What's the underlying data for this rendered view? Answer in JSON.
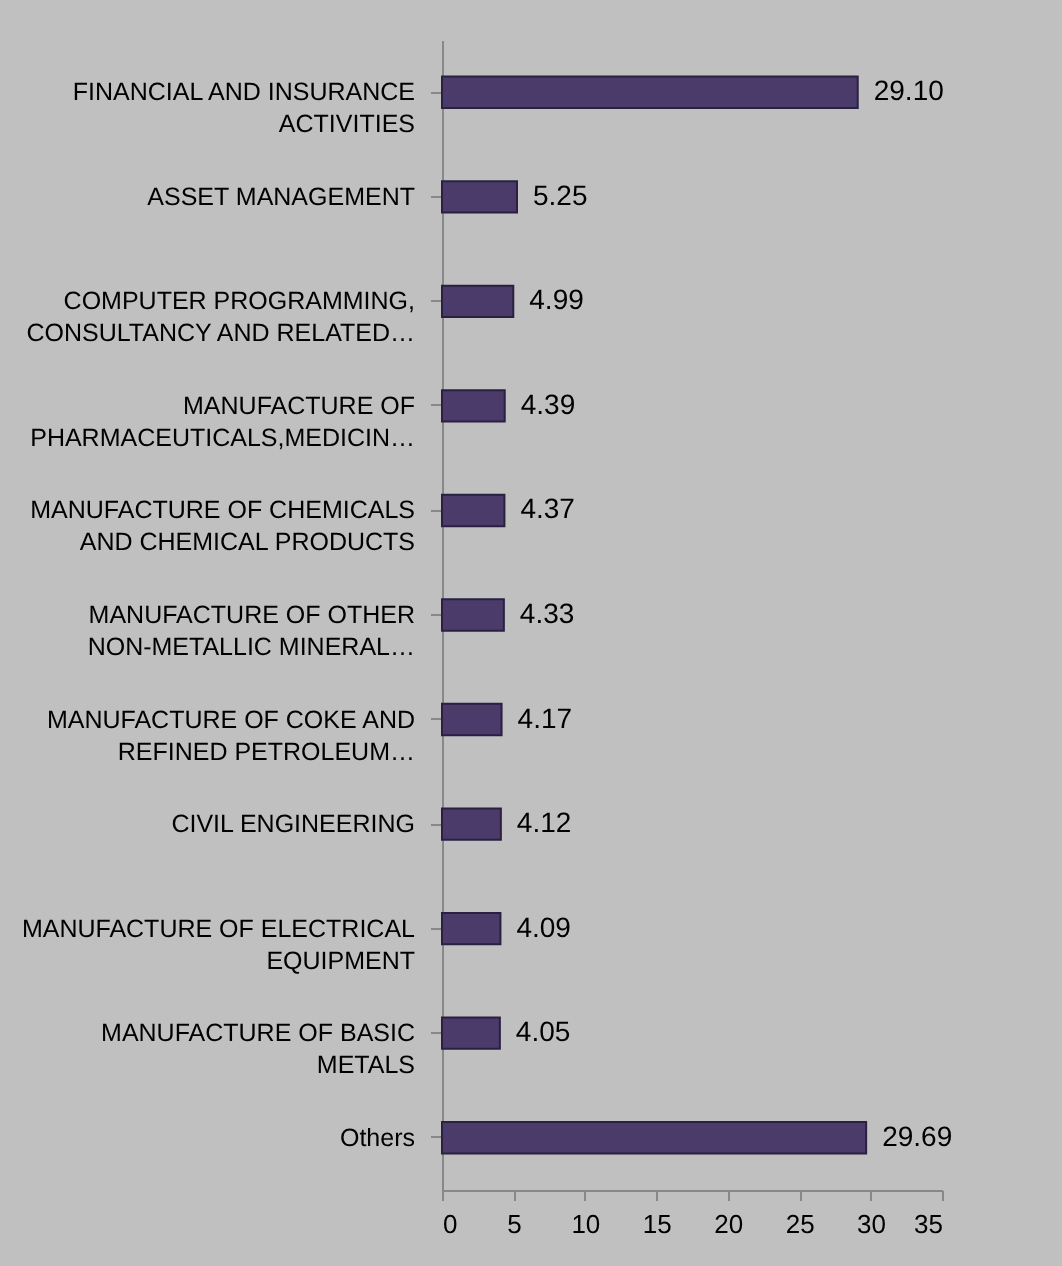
{
  "chart_data": {
    "type": "bar",
    "orientation": "horizontal",
    "categories": [
      "FINANCIAL AND INSURANCE ACTIVITIES",
      "ASSET MANAGEMENT",
      "COMPUTER PROGRAMMING, CONSULTANCY AND RELATED…",
      "MANUFACTURE OF PHARMACEUTICALS,MEDICIN…",
      "MANUFACTURE OF CHEMICALS AND CHEMICAL PRODUCTS",
      "MANUFACTURE OF OTHER NON-METALLIC MINERAL…",
      "MANUFACTURE OF COKE AND REFINED PETROLEUM…",
      "CIVIL ENGINEERING",
      "MANUFACTURE OF ELECTRICAL EQUIPMENT",
      "MANUFACTURE OF BASIC METALS",
      "Others"
    ],
    "values": [
      29.1,
      5.25,
      4.99,
      4.39,
      4.37,
      4.33,
      4.17,
      4.12,
      4.09,
      4.05,
      29.69
    ],
    "value_labels": [
      "29.10",
      "5.25",
      "4.99",
      "4.39",
      "4.37",
      "4.33",
      "4.17",
      "4.12",
      "4.09",
      "4.05",
      "29.69"
    ],
    "color": "#4b3b6b",
    "xlim": [
      0,
      35
    ],
    "xticks": [
      0,
      5,
      10,
      15,
      20,
      25,
      30,
      35
    ],
    "grid": false
  }
}
